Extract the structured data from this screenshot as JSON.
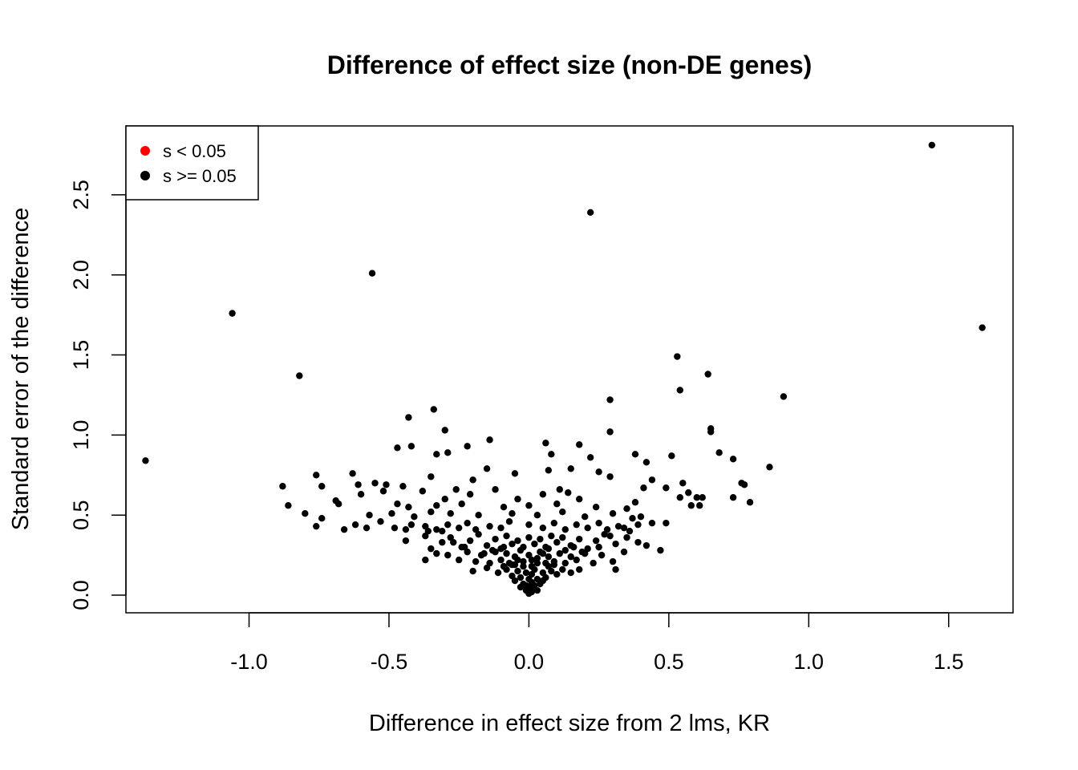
{
  "chart_data": {
    "type": "scatter",
    "title": "Difference of effect size (non-DE genes)",
    "xlabel": "Difference in effect size from 2 lms, KR",
    "ylabel": "Standard error of the difference",
    "xlim": [
      -1.44,
      1.73
    ],
    "ylim": [
      -0.11,
      2.93
    ],
    "xticks": [
      -1.0,
      -0.5,
      0.0,
      0.5,
      1.0,
      1.5
    ],
    "xtick_labels": [
      "-1.0",
      "-0.5",
      "0.0",
      "0.5",
      "1.0",
      "1.5"
    ],
    "yticks": [
      0.0,
      0.5,
      1.0,
      1.5,
      2.0,
      2.5
    ],
    "ytick_labels": [
      "0.0",
      "0.5",
      "1.0",
      "1.5",
      "2.0",
      "2.5"
    ],
    "grid": false,
    "legend": {
      "position": "top-left",
      "entries": [
        {
          "label": "s < 0.05",
          "color": "#ff0000"
        },
        {
          "label": "s >= 0.05",
          "color": "#000000"
        }
      ]
    },
    "series": [
      {
        "color": "#000000",
        "points": [
          [
            1.44,
            2.81
          ],
          [
            0.22,
            2.39
          ],
          [
            -0.56,
            2.01
          ],
          [
            -1.06,
            1.76
          ],
          [
            1.62,
            1.67
          ],
          [
            0.53,
            1.49
          ],
          [
            0.64,
            1.38
          ],
          [
            -0.82,
            1.37
          ],
          [
            0.54,
            1.28
          ],
          [
            0.91,
            1.24
          ],
          [
            0.29,
            1.22
          ],
          [
            -0.34,
            1.16
          ],
          [
            -0.43,
            1.11
          ],
          [
            0.65,
            1.04
          ],
          [
            0.65,
            1.02
          ],
          [
            -0.3,
            1.03
          ],
          [
            0.29,
            1.02
          ],
          [
            -1.37,
            0.84
          ],
          [
            -0.14,
            0.97
          ],
          [
            0.06,
            0.95
          ],
          [
            0.18,
            0.94
          ],
          [
            -0.42,
            0.93
          ],
          [
            -0.47,
            0.92
          ],
          [
            -0.22,
            0.93
          ],
          [
            0.08,
            0.88
          ],
          [
            0.22,
            0.86
          ],
          [
            0.38,
            0.88
          ],
          [
            0.51,
            0.87
          ],
          [
            0.68,
            0.89
          ],
          [
            0.73,
            0.85
          ],
          [
            -0.33,
            0.88
          ],
          [
            -0.29,
            0.89
          ],
          [
            0.42,
            0.83
          ],
          [
            0.86,
            0.8
          ],
          [
            -0.15,
            0.79
          ],
          [
            0.07,
            0.78
          ],
          [
            0.15,
            0.79
          ],
          [
            0.25,
            0.77
          ],
          [
            0.29,
            0.74
          ],
          [
            -0.05,
            0.76
          ],
          [
            -0.63,
            0.76
          ],
          [
            -0.76,
            0.75
          ],
          [
            -0.35,
            0.74
          ],
          [
            -0.2,
            0.72
          ],
          [
            0.44,
            0.72
          ],
          [
            0.55,
            0.7
          ],
          [
            0.76,
            0.7
          ],
          [
            0.77,
            0.69
          ],
          [
            -0.74,
            0.68
          ],
          [
            -0.61,
            0.69
          ],
          [
            -0.88,
            0.68
          ],
          [
            -0.55,
            0.7
          ],
          [
            -0.51,
            0.69
          ],
          [
            -0.45,
            0.68
          ],
          [
            -0.38,
            0.65
          ],
          [
            -0.26,
            0.66
          ],
          [
            -0.12,
            0.66
          ],
          [
            0.11,
            0.66
          ],
          [
            0.14,
            0.64
          ],
          [
            0.41,
            0.67
          ],
          [
            0.49,
            0.67
          ],
          [
            0.57,
            0.64
          ],
          [
            0.6,
            0.61
          ],
          [
            0.62,
            0.61
          ],
          [
            0.73,
            0.61
          ],
          [
            -0.6,
            0.63
          ],
          [
            -0.52,
            0.65
          ],
          [
            -0.3,
            0.6
          ],
          [
            -0.21,
            0.63
          ],
          [
            -0.04,
            0.6
          ],
          [
            0.05,
            0.63
          ],
          [
            0.18,
            0.6
          ],
          [
            0.54,
            0.61
          ],
          [
            0.58,
            0.56
          ],
          [
            0.61,
            0.56
          ],
          [
            0.79,
            0.58
          ],
          [
            -0.86,
            0.56
          ],
          [
            -0.69,
            0.59
          ],
          [
            -0.68,
            0.57
          ],
          [
            -0.47,
            0.57
          ],
          [
            -0.43,
            0.55
          ],
          [
            -0.33,
            0.56
          ],
          [
            -0.24,
            0.57
          ],
          [
            -0.09,
            0.55
          ],
          [
            0.0,
            0.56
          ],
          [
            0.1,
            0.57
          ],
          [
            0.24,
            0.55
          ],
          [
            0.35,
            0.54
          ],
          [
            0.38,
            0.58
          ],
          [
            -0.8,
            0.51
          ],
          [
            -0.74,
            0.48
          ],
          [
            -0.57,
            0.5
          ],
          [
            -0.49,
            0.51
          ],
          [
            -0.41,
            0.49
          ],
          [
            -0.35,
            0.52
          ],
          [
            -0.28,
            0.51
          ],
          [
            -0.18,
            0.5
          ],
          [
            -0.06,
            0.51
          ],
          [
            0.03,
            0.5
          ],
          [
            0.12,
            0.52
          ],
          [
            0.2,
            0.49
          ],
          [
            0.3,
            0.51
          ],
          [
            0.4,
            0.49
          ],
          [
            -0.76,
            0.43
          ],
          [
            -0.66,
            0.41
          ],
          [
            -0.62,
            0.44
          ],
          [
            -0.58,
            0.42
          ],
          [
            -0.53,
            0.46
          ],
          [
            -0.48,
            0.42
          ],
          [
            -0.44,
            0.41
          ],
          [
            -0.42,
            0.44
          ],
          [
            -0.37,
            0.43
          ],
          [
            -0.33,
            0.41
          ],
          [
            -0.29,
            0.44
          ],
          [
            -0.25,
            0.42
          ],
          [
            -0.22,
            0.45
          ],
          [
            -0.19,
            0.41
          ],
          [
            -0.14,
            0.43
          ],
          [
            -0.1,
            0.42
          ],
          [
            -0.07,
            0.46
          ],
          [
            0.0,
            0.44
          ],
          [
            0.05,
            0.42
          ],
          [
            0.09,
            0.45
          ],
          [
            0.13,
            0.41
          ],
          [
            0.17,
            0.44
          ],
          [
            0.21,
            0.42
          ],
          [
            0.25,
            0.45
          ],
          [
            0.28,
            0.41
          ],
          [
            0.32,
            0.43
          ],
          [
            0.36,
            0.4
          ],
          [
            0.39,
            0.44
          ],
          [
            0.44,
            0.45
          ],
          [
            0.49,
            0.45
          ],
          [
            -0.44,
            0.34
          ],
          [
            -0.37,
            0.37
          ],
          [
            -0.35,
            0.29
          ],
          [
            -0.31,
            0.33
          ],
          [
            -0.28,
            0.36
          ],
          [
            -0.24,
            0.3
          ],
          [
            -0.21,
            0.34
          ],
          [
            -0.18,
            0.38
          ],
          [
            -0.15,
            0.31
          ],
          [
            -0.12,
            0.35
          ],
          [
            -0.1,
            0.29
          ],
          [
            -0.08,
            0.37
          ],
          [
            -0.06,
            0.32
          ],
          [
            -0.04,
            0.34
          ],
          [
            -0.02,
            0.3
          ],
          [
            0.0,
            0.36
          ],
          [
            0.02,
            0.32
          ],
          [
            0.04,
            0.35
          ],
          [
            0.06,
            0.3
          ],
          [
            0.08,
            0.37
          ],
          [
            0.1,
            0.33
          ],
          [
            0.12,
            0.36
          ],
          [
            0.15,
            0.31
          ],
          [
            0.18,
            0.35
          ],
          [
            0.21,
            0.29
          ],
          [
            0.24,
            0.34
          ],
          [
            0.27,
            0.38
          ],
          [
            0.31,
            0.32
          ],
          [
            0.35,
            0.36
          ],
          [
            0.39,
            0.33
          ],
          [
            0.42,
            0.31
          ],
          [
            0.47,
            0.28
          ],
          [
            -0.37,
            0.22
          ],
          [
            -0.33,
            0.26
          ],
          [
            -0.29,
            0.25
          ],
          [
            -0.25,
            0.22
          ],
          [
            -0.22,
            0.27
          ],
          [
            -0.19,
            0.21
          ],
          [
            -0.17,
            0.25
          ],
          [
            -0.14,
            0.2
          ],
          [
            -0.12,
            0.27
          ],
          [
            -0.1,
            0.22
          ],
          [
            -0.08,
            0.26
          ],
          [
            -0.06,
            0.19
          ],
          [
            -0.05,
            0.24
          ],
          [
            -0.03,
            0.28
          ],
          [
            -0.02,
            0.21
          ],
          [
            0.0,
            0.25
          ],
          [
            0.01,
            0.18
          ],
          [
            0.03,
            0.23
          ],
          [
            0.04,
            0.27
          ],
          [
            0.06,
            0.2
          ],
          [
            0.07,
            0.24
          ],
          [
            0.09,
            0.21
          ],
          [
            0.11,
            0.26
          ],
          [
            0.13,
            0.2
          ],
          [
            0.15,
            0.24
          ],
          [
            0.17,
            0.22
          ],
          [
            0.2,
            0.26
          ],
          [
            0.23,
            0.2
          ],
          [
            0.26,
            0.25
          ],
          [
            0.3,
            0.21
          ],
          [
            0.34,
            0.27
          ],
          [
            0.31,
            0.16
          ],
          [
            -0.2,
            0.15
          ],
          [
            -0.15,
            0.17
          ],
          [
            -0.11,
            0.14
          ],
          [
            -0.08,
            0.16
          ],
          [
            -0.06,
            0.12
          ],
          [
            -0.04,
            0.15
          ],
          [
            -0.03,
            0.11
          ],
          [
            -0.01,
            0.14
          ],
          [
            0.0,
            0.1
          ],
          [
            0.01,
            0.13
          ],
          [
            0.02,
            0.16
          ],
          [
            0.03,
            0.1
          ],
          [
            0.05,
            0.14
          ],
          [
            0.06,
            0.11
          ],
          [
            0.08,
            0.15
          ],
          [
            0.1,
            0.13
          ],
          [
            0.12,
            0.16
          ],
          [
            0.15,
            0.14
          ],
          [
            0.18,
            0.16
          ],
          [
            -0.02,
            0.07
          ],
          [
            0.0,
            0.05
          ],
          [
            0.01,
            0.08
          ],
          [
            0.02,
            0.04
          ],
          [
            -0.01,
            0.03
          ],
          [
            0.0,
            0.01
          ],
          [
            0.01,
            0.02
          ],
          [
            -0.01,
            0.06
          ],
          [
            0.02,
            0.06
          ],
          [
            0.03,
            0.03
          ],
          [
            -0.03,
            0.05
          ],
          [
            0.04,
            0.07
          ],
          [
            -0.05,
            0.09
          ],
          [
            0.05,
            0.09
          ],
          [
            -0.07,
            0.2
          ],
          [
            -0.09,
            0.18
          ],
          [
            0.07,
            0.18
          ],
          [
            0.09,
            0.19
          ],
          [
            -0.05,
            0.19
          ],
          [
            0.03,
            0.2
          ],
          [
            -0.02,
            0.18
          ],
          [
            0.01,
            0.22
          ],
          [
            -0.04,
            0.22
          ],
          [
            0.05,
            0.26
          ],
          [
            -0.09,
            0.3
          ],
          [
            0.07,
            0.29
          ],
          [
            -0.13,
            0.28
          ],
          [
            0.13,
            0.28
          ],
          [
            0.16,
            0.3
          ],
          [
            -0.16,
            0.26
          ],
          [
            0.19,
            0.27
          ],
          [
            -0.23,
            0.3
          ],
          [
            0.25,
            0.3
          ],
          [
            -0.27,
            0.33
          ],
          [
            0.29,
            0.37
          ],
          [
            0.34,
            0.42
          ],
          [
            -0.31,
            0.4
          ],
          [
            -0.36,
            0.4
          ],
          [
            0.37,
            0.48
          ]
        ]
      }
    ]
  }
}
